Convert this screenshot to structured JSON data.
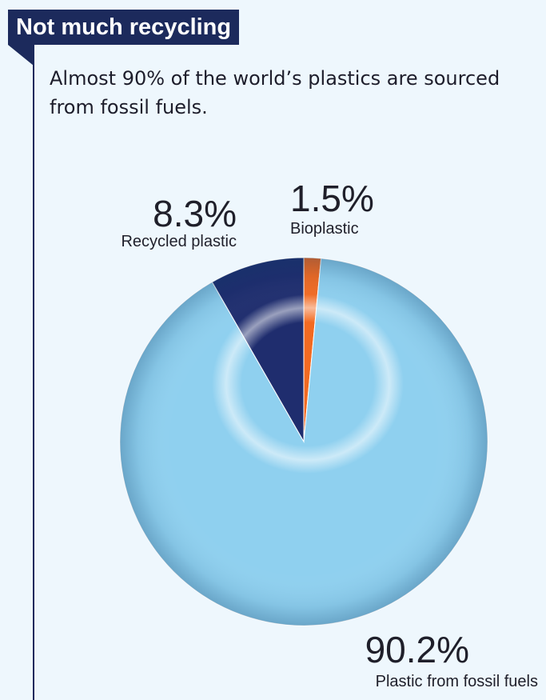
{
  "header": {
    "title": "Not much recycling",
    "subtitle": "Almost 90% of the world’s plastics are sourced from fossil fuels."
  },
  "colors": {
    "background": "#eef7fd",
    "accent": "#1c2a5c",
    "fossil": "#8fd0ef",
    "recycled": "#1f2d6e",
    "bio": "#f26a21"
  },
  "chart_data": {
    "type": "pie",
    "title": "Not much recycling",
    "subtitle": "Almost 90% of the world’s plastics are sourced from fossil fuels.",
    "categories": [
      "Bioplastic",
      "Plastic from fossil fuels",
      "Recycled plastic"
    ],
    "values": [
      1.5,
      90.2,
      8.3
    ],
    "labels": [
      "1.5%",
      "90.2%",
      "8.3%"
    ],
    "units": "%",
    "legend": "none"
  }
}
